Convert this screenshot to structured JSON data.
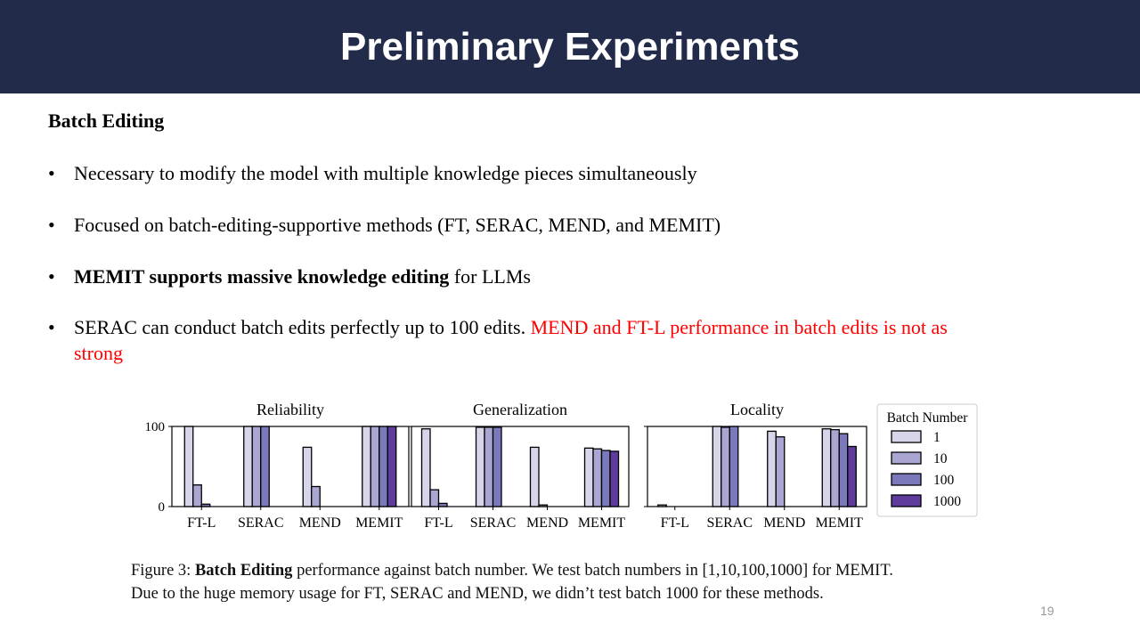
{
  "header": {
    "title": "Preliminary Experiments"
  },
  "subtitle": "Batch Editing",
  "bullets": [
    {
      "text": "Necessary to modify  the model  with  multiple  knowledge   pieces simultaneously"
    },
    {
      "bold": "MEMIT supports massive knowledge editing",
      "text": "  for LLMs"
    },
    {
      "text": "Focused on batch-editing-supportive   methods  (FT, SERAC, MEND, and MEMIT)"
    },
    {
      "text": "SERAC can conduct batch edits perfectly up to 100 edits. ",
      "red": "MEND and FT-L performance  in batch edits is not as strong"
    }
  ],
  "chart_data": {
    "type": "bar",
    "categories": [
      "FT-L",
      "SERAC",
      "MEND",
      "MEMIT"
    ],
    "legend": {
      "title": "Batch Number",
      "placement": "right",
      "entries": [
        "1",
        "10",
        "100",
        "1000"
      ]
    },
    "colors": [
      "#d6d5ea",
      "#a9a6d1",
      "#7b78bb",
      "#5e3b9c"
    ],
    "ylim": [
      0,
      100
    ],
    "yticks": [
      "0",
      "100"
    ],
    "panels": [
      {
        "title": "Reliability",
        "series": [
          [
            100,
            27,
            3,
            null
          ],
          [
            100,
            100,
            100,
            null
          ],
          [
            74,
            25,
            0,
            null
          ],
          [
            100,
            100,
            100,
            100
          ]
        ]
      },
      {
        "title": "Generalization",
        "series": [
          [
            97,
            21,
            4,
            null
          ],
          [
            99,
            99,
            99,
            null
          ],
          [
            74,
            2,
            0,
            null
          ],
          [
            73,
            72,
            70,
            69
          ]
        ]
      },
      {
        "title": "Locality",
        "series": [
          [
            2,
            0,
            0,
            null
          ],
          [
            100,
            99,
            100,
            null
          ],
          [
            94,
            87,
            0,
            null
          ],
          [
            97,
            96,
            91,
            75
          ]
        ]
      }
    ]
  },
  "caption": {
    "prefix": "Figure 3: ",
    "bold": "Batch Editing",
    "text": " performance against batch number. We test batch numbers in [1,10,100,1000] for MEMIT.",
    "line2": "Due to the huge memory usage for FT, SERAC and MEND, we didn’t test batch 1000 for these methods."
  },
  "page_number": "19"
}
